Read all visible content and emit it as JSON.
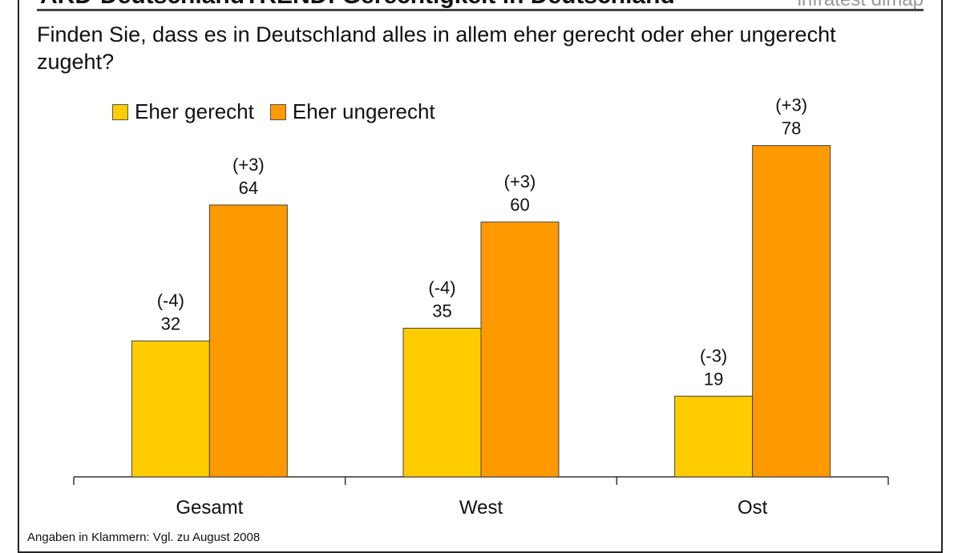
{
  "header": {
    "title": "ARD-DeutschlandTREND: Gerechtigkeit in Deutschland",
    "logo": "infratest dimap"
  },
  "chart_data": {
    "type": "bar",
    "title": "Finden Sie, dass es in Deutschland alles in allem eher gerecht oder eher ungerecht zugeht?",
    "categories": [
      "Gesamt",
      "West",
      "Ost"
    ],
    "series": [
      {
        "name": "Eher gerecht",
        "color": "#ffcc00",
        "values": [
          32,
          35,
          19
        ],
        "changes": [
          "(-4)",
          "(-4)",
          "(-3)"
        ]
      },
      {
        "name": "Eher ungerecht",
        "color": "#ff9900",
        "values": [
          64,
          60,
          78
        ],
        "changes": [
          "(+3)",
          "(+3)",
          "(+3)"
        ]
      }
    ],
    "ylim": [
      0,
      100
    ],
    "grid": false,
    "legend": "top-left",
    "footnote": "Angaben in Klammern: Vgl. zu August 2008"
  }
}
